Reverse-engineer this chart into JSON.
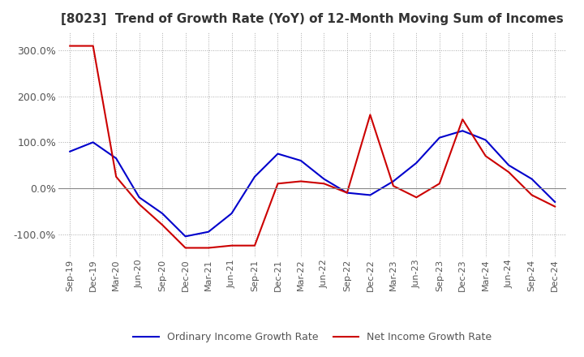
{
  "title": "[8023]  Trend of Growth Rate (YoY) of 12-Month Moving Sum of Incomes",
  "title_fontsize": 11,
  "ylim": [
    -150,
    340
  ],
  "yticks": [
    -100,
    0,
    100,
    200,
    300
  ],
  "ytick_labels": [
    "-100.0%",
    "0.0%",
    "100.0%",
    "200.0%",
    "300.0%"
  ],
  "background_color": "#ffffff",
  "grid_color": "#aaaaaa",
  "ordinary_color": "#0000cc",
  "net_color": "#cc0000",
  "legend_ordinary": "Ordinary Income Growth Rate",
  "legend_net": "Net Income Growth Rate",
  "x_labels": [
    "Sep-19",
    "Dec-19",
    "Mar-20",
    "Jun-20",
    "Sep-20",
    "Dec-20",
    "Mar-21",
    "Jun-21",
    "Sep-21",
    "Dec-21",
    "Mar-22",
    "Jun-22",
    "Sep-22",
    "Dec-22",
    "Mar-23",
    "Jun-23",
    "Sep-23",
    "Dec-23",
    "Mar-24",
    "Jun-24",
    "Sep-24",
    "Dec-24"
  ],
  "ordinary_data": [
    80,
    100,
    65,
    -20,
    -55,
    -105,
    -95,
    -55,
    25,
    75,
    60,
    20,
    -10,
    -15,
    15,
    55,
    110,
    125,
    105,
    50,
    20,
    -30
  ],
  "net_data": [
    310,
    310,
    25,
    -35,
    -80,
    -130,
    -130,
    -125,
    -125,
    10,
    15,
    10,
    -10,
    160,
    5,
    -20,
    10,
    150,
    70,
    35,
    -15,
    -40
  ]
}
